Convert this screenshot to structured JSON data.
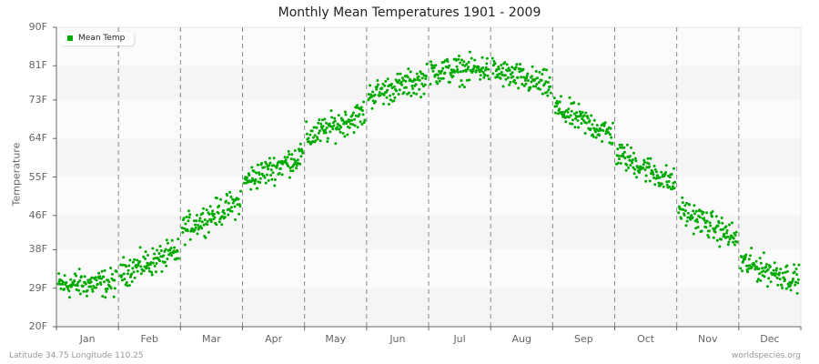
{
  "title": "Monthly Mean Temperatures 1901 - 2009",
  "ylabel": "Temperature",
  "footer": {
    "left": "Latitude 34.75 Longitude 110.25",
    "right": "worldspecies.org"
  },
  "legend": {
    "label": "Mean Temp",
    "color": "#00aa00"
  },
  "colors": {
    "point": "#00aa00",
    "band_a": "#f5f5f5",
    "band_b": "#fbfbfb",
    "divider": "#888888",
    "axis": "#666666"
  },
  "yticks": [
    "90F",
    "81F",
    "73F",
    "64F",
    "55F",
    "46F",
    "38F",
    "29F",
    "20F"
  ],
  "xticks": [
    "Jan",
    "Feb",
    "Mar",
    "Apr",
    "May",
    "Jun",
    "Jul",
    "Aug",
    "Sep",
    "Oct",
    "Nov",
    "Dec"
  ],
  "chart_data": {
    "type": "scatter",
    "title": "Monthly Mean Temperatures 1901 - 2009",
    "xlabel": "",
    "ylabel": "Temperature",
    "ylim": [
      20,
      90
    ],
    "ytick_values": [
      90,
      81,
      73,
      64,
      55,
      46,
      38,
      29,
      20
    ],
    "categories": [
      "Jan",
      "Feb",
      "Mar",
      "Apr",
      "May",
      "Jun",
      "Jul",
      "Aug",
      "Sep",
      "Oct",
      "Nov",
      "Dec"
    ],
    "series": [
      {
        "name": "Mean Temp",
        "years": [
          1901,
          2009
        ],
        "approx_monthly_mean": [
          30,
          35,
          46,
          57,
          67,
          76,
          80,
          78,
          68,
          57,
          44,
          33
        ],
        "approx_monthly_min": [
          24,
          27,
          40,
          53,
          63,
          72,
          76,
          73,
          64,
          53,
          40,
          26
        ],
        "approx_monthly_max": [
          35,
          41,
          51,
          62,
          72,
          80,
          84,
          82,
          70,
          61,
          49,
          38
        ],
        "points_per_month": 109
      }
    ],
    "legend_position": "top-left",
    "grid": "horizontal alternating bands with vertical dashed month dividers"
  }
}
